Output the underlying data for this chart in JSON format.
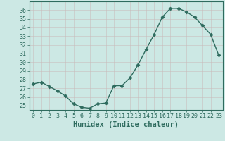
{
  "x": [
    0,
    1,
    2,
    3,
    4,
    5,
    6,
    7,
    8,
    9,
    10,
    11,
    12,
    13,
    14,
    15,
    16,
    17,
    18,
    19,
    20,
    21,
    22,
    23
  ],
  "y": [
    27.5,
    27.7,
    27.2,
    26.7,
    26.1,
    25.2,
    24.8,
    24.7,
    25.2,
    25.3,
    27.3,
    27.3,
    28.2,
    29.7,
    31.5,
    33.2,
    35.2,
    36.2,
    36.2,
    35.8,
    35.2,
    34.2,
    33.2,
    30.8
  ],
  "line_color": "#2e6b5e",
  "marker": "D",
  "markersize": 2.5,
  "linewidth": 1.0,
  "bg_color": "#cce8e4",
  "grid_color": "#b8d8d4",
  "xlabel": "Humidex (Indice chaleur)",
  "ylim": [
    24.5,
    37
  ],
  "xlim": [
    -0.5,
    23.5
  ],
  "yticks": [
    25,
    26,
    27,
    28,
    29,
    30,
    31,
    32,
    33,
    34,
    35,
    36
  ],
  "xticks": [
    0,
    1,
    2,
    3,
    4,
    5,
    6,
    7,
    8,
    9,
    10,
    11,
    12,
    13,
    14,
    15,
    16,
    17,
    18,
    19,
    20,
    21,
    22,
    23
  ],
  "tick_color": "#2e6b5e",
  "label_fontsize": 7.5,
  "tick_fontsize": 6
}
